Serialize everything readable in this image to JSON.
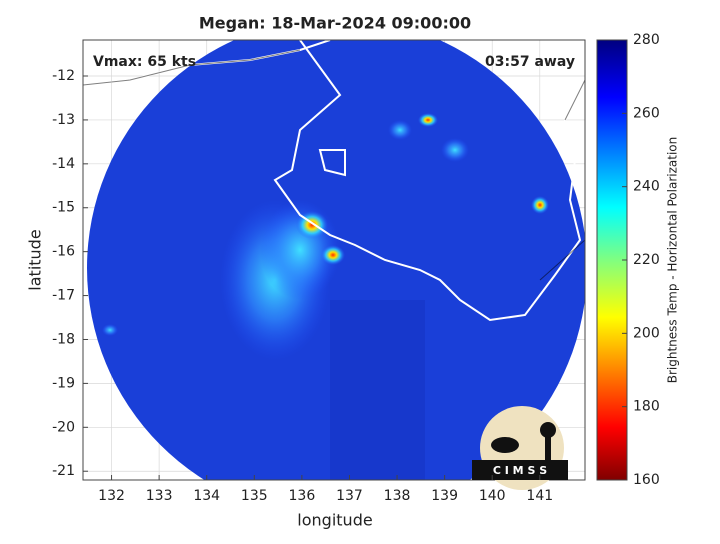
{
  "chart_data": {
    "type": "image",
    "title": "Megan: 18-Mar-2024 09:00:00",
    "annotations": [
      "Vmax: 65 kts",
      "03:57 away"
    ],
    "x_label": "longitude",
    "y_label": "latitude",
    "xlim": [
      131.4,
      141.95
    ],
    "xticks": [
      132,
      133,
      134,
      135,
      136,
      137,
      138,
      139,
      140,
      141
    ],
    "ylim": [
      -21.2,
      -11.18
    ],
    "yticks": [
      -21,
      -20,
      -19,
      -18,
      -17,
      -16,
      -15,
      -14,
      -13,
      -12
    ],
    "grid": true,
    "colorbar": {
      "label": "Brightness Temp - Horizontal Polarization",
      "lim": [
        160,
        280
      ],
      "ticks": [
        160,
        180,
        200,
        220,
        240,
        260,
        280
      ],
      "colormap": "jet"
    },
    "logo": "C I M S S"
  }
}
